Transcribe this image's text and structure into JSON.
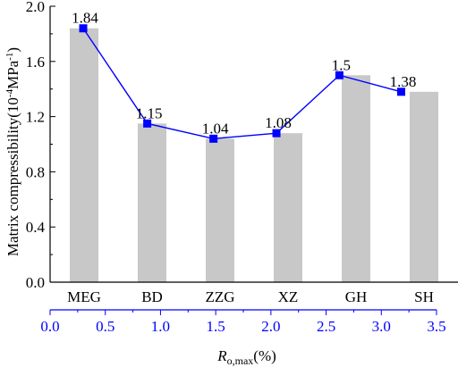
{
  "chart_data": {
    "type": "bar",
    "categories": [
      "MEG",
      "BD",
      "ZZG",
      "XZ",
      "GH",
      "SH"
    ],
    "values": [
      1.84,
      1.15,
      1.04,
      1.08,
      1.5,
      1.38
    ],
    "value_labels": [
      "1.84",
      "1.15",
      "1.04",
      "1.08",
      "1.5",
      "1.38"
    ],
    "ylabel": {
      "prefix": "Matrix compressibility(10",
      "exp": "-4",
      "middle": "MPa",
      "exp2": "-1",
      "suffix": ")"
    },
    "ylim": [
      0.0,
      2.0
    ],
    "yticks": [
      "0.0",
      "0.4",
      "0.8",
      "1.2",
      "1.6",
      "2.0"
    ],
    "secondary_x": {
      "label_main": "R",
      "label_sub": "o,max",
      "label_unit": "(%)",
      "ticks": [
        "0.0",
        "0.5",
        "1.0",
        "1.5",
        "2.0",
        "2.5",
        "3.0",
        "3.5"
      ],
      "xlim": [
        0.0,
        3.5
      ],
      "line_x": [
        0.3,
        0.88,
        1.48,
        2.05,
        2.62,
        3.18
      ],
      "line_y": [
        1.84,
        1.15,
        1.04,
        1.08,
        1.5,
        1.38
      ]
    },
    "colors": {
      "bar": "#c8c8c8",
      "line": "#0000ff",
      "marker": "#0000ff",
      "axis": "#000000",
      "secondary_axis": "#0000ff"
    },
    "grid": false
  }
}
